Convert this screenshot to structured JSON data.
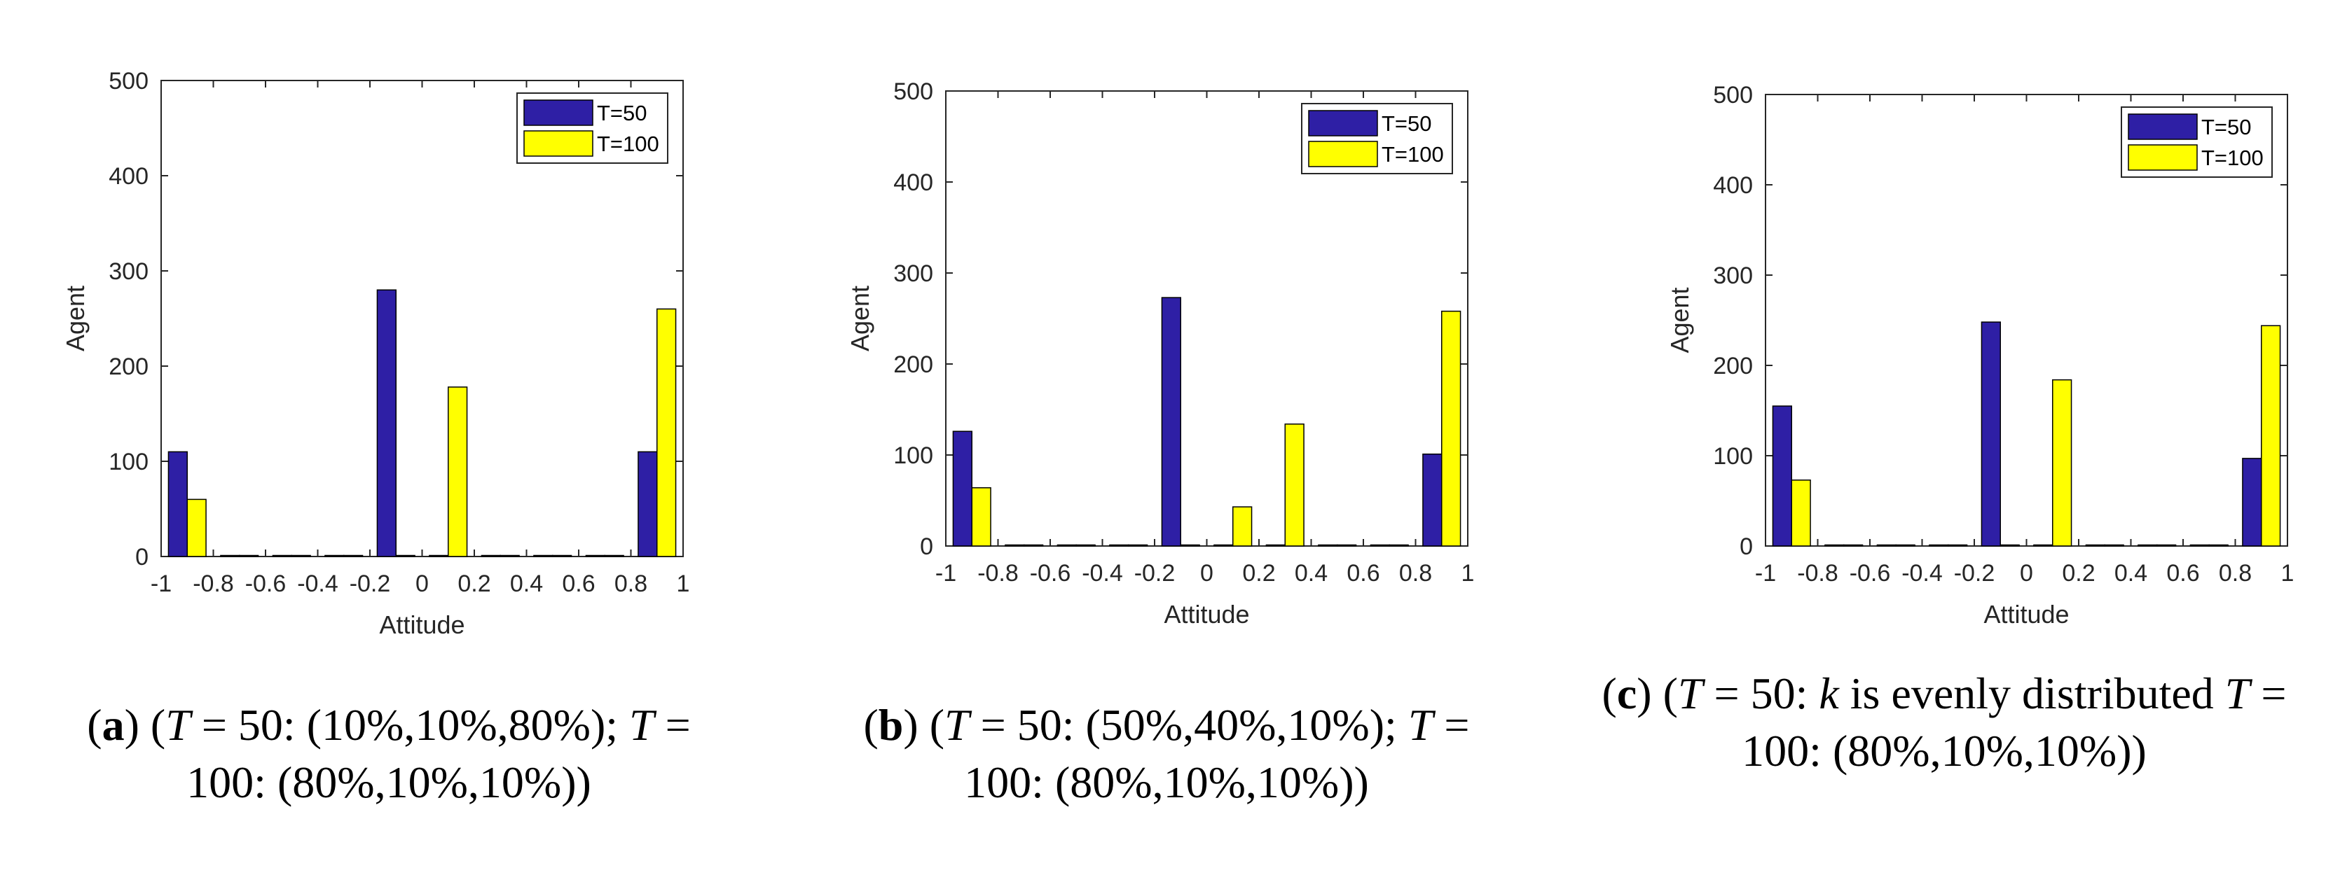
{
  "colors": {
    "t50": "#2e1fa5",
    "t100": "#ffff00",
    "axis": "#262626"
  },
  "chart_data": [
    {
      "type": "bar",
      "panel": "a",
      "xlabel": "Attitude",
      "ylabel": "Agent",
      "xlim": [
        -1,
        1
      ],
      "ylim": [
        0,
        500
      ],
      "xticks": [
        "-1",
        "-0.8",
        "-0.6",
        "-0.4",
        "-0.2",
        "0",
        "0.2",
        "0.4",
        "0.6",
        "0.8",
        "1"
      ],
      "yticks": [
        "0",
        "100",
        "200",
        "300",
        "400",
        "500"
      ],
      "legend": {
        "position": "top-right",
        "entries": [
          "T=50",
          "T=100"
        ]
      },
      "categories": [
        -0.9,
        -0.7,
        -0.5,
        -0.3,
        -0.1,
        0.1,
        0.3,
        0.5,
        0.7,
        0.9
      ],
      "series": [
        {
          "name": "T=50",
          "values": [
            110,
            0,
            0,
            0,
            280,
            0,
            0,
            0,
            0,
            110
          ]
        },
        {
          "name": "T=100",
          "values": [
            60,
            0,
            0,
            0,
            0,
            178,
            0,
            0,
            0,
            260
          ]
        }
      ],
      "caption": {
        "letter": "a",
        "parts": [
          {
            "t": "(",
            "s": "n"
          },
          {
            "t": "a",
            "s": "b"
          },
          {
            "t": ") (",
            "s": "n"
          },
          {
            "t": "T",
            "s": "i"
          },
          {
            "t": " = 50: (10%,10%,80%); ",
            "s": "n"
          },
          {
            "t": "T",
            "s": "i"
          },
          {
            "t": " = 100: (80%,10%,10%))",
            "s": "n"
          }
        ]
      }
    },
    {
      "type": "bar",
      "panel": "b",
      "xlabel": "Attitude",
      "ylabel": "Agent",
      "xlim": [
        -1,
        1
      ],
      "ylim": [
        0,
        500
      ],
      "xticks": [
        "-1",
        "-0.8",
        "-0.6",
        "-0.4",
        "-0.2",
        "0",
        "0.2",
        "0.4",
        "0.6",
        "0.8",
        "1"
      ],
      "yticks": [
        "0",
        "100",
        "200",
        "300",
        "400",
        "500"
      ],
      "legend": {
        "position": "top-right",
        "entries": [
          "T=50",
          "T=100"
        ]
      },
      "categories": [
        -0.9,
        -0.7,
        -0.5,
        -0.3,
        -0.1,
        0.1,
        0.3,
        0.5,
        0.7,
        0.9
      ],
      "series": [
        {
          "name": "T=50",
          "values": [
            126,
            0,
            0,
            0,
            273,
            0,
            0,
            0,
            0,
            101
          ]
        },
        {
          "name": "T=100",
          "values": [
            64,
            0,
            0,
            0,
            0,
            43,
            134,
            0,
            0,
            258
          ]
        }
      ],
      "caption": {
        "letter": "b",
        "parts": [
          {
            "t": "(",
            "s": "n"
          },
          {
            "t": "b",
            "s": "b"
          },
          {
            "t": ") (",
            "s": "n"
          },
          {
            "t": "T",
            "s": "i"
          },
          {
            "t": " = 50: (50%,40%,10%); ",
            "s": "n"
          },
          {
            "t": "T",
            "s": "i"
          },
          {
            "t": " = 100: (80%,10%,10%))",
            "s": "n"
          }
        ]
      }
    },
    {
      "type": "bar",
      "panel": "c",
      "xlabel": "Attitude",
      "ylabel": "Agent",
      "xlim": [
        -1,
        1
      ],
      "ylim": [
        0,
        500
      ],
      "xticks": [
        "-1",
        "-0.8",
        "-0.6",
        "-0.4",
        "-0.2",
        "0",
        "0.2",
        "0.4",
        "0.6",
        "0.8",
        "1"
      ],
      "yticks": [
        "0",
        "100",
        "200",
        "300",
        "400",
        "500"
      ],
      "legend": {
        "position": "top-right",
        "entries": [
          "T=50",
          "T=100"
        ]
      },
      "categories": [
        -0.9,
        -0.7,
        -0.5,
        -0.3,
        -0.1,
        0.1,
        0.3,
        0.5,
        0.7,
        0.9
      ],
      "series": [
        {
          "name": "T=50",
          "values": [
            155,
            0,
            0,
            0,
            248,
            0,
            0,
            0,
            0,
            97
          ]
        },
        {
          "name": "T=100",
          "values": [
            73,
            0,
            0,
            0,
            0,
            184,
            0,
            0,
            0,
            244
          ]
        }
      ],
      "caption": {
        "letter": "c",
        "parts": [
          {
            "t": "(",
            "s": "n"
          },
          {
            "t": "c",
            "s": "b"
          },
          {
            "t": ") (",
            "s": "n"
          },
          {
            "t": "T",
            "s": "i"
          },
          {
            "t": " = 50: ",
            "s": "n"
          },
          {
            "t": "k",
            "s": "i"
          },
          {
            "t": " is evenly distributed ",
            "s": "n"
          },
          {
            "t": "T",
            "s": "i"
          },
          {
            "t": " = 100: (80%,10%,10%))",
            "s": "n"
          }
        ]
      }
    }
  ]
}
